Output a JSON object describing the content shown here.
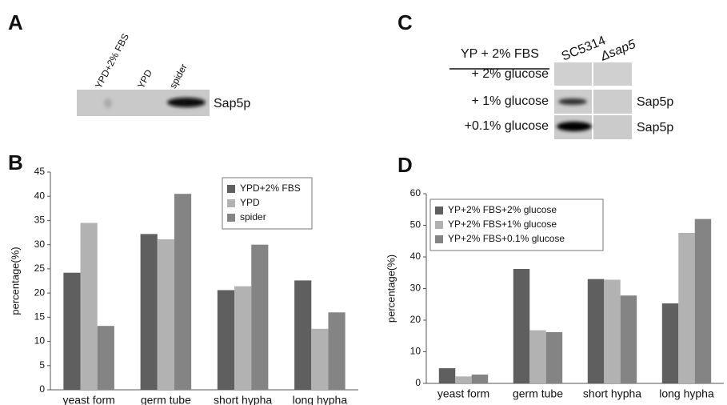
{
  "panels": {
    "A": {
      "letter": "A",
      "lanes": [
        "YPD+2% FBS",
        "YPD",
        "spider"
      ],
      "band_label": "Sap5p"
    },
    "C": {
      "letter": "C",
      "header": "YP + 2% FBS",
      "columns": [
        "SC5314",
        "Δsap5"
      ],
      "rows": [
        "+ 2% glucose",
        "+ 1% glucose",
        "+0.1% glucose"
      ],
      "band_labels": [
        "Sap5p",
        "Sap5p"
      ]
    }
  },
  "chart_data": [
    {
      "type": "bar",
      "letter": "B",
      "ylabel": "percentage(%)",
      "categories": [
        "yeast form",
        "germ tube",
        "short hypha",
        "long hypha"
      ],
      "series": [
        {
          "name": "YPD+2% FBS",
          "color": "#5f5f5f",
          "values": [
            24.2,
            32.2,
            20.6,
            22.6
          ]
        },
        {
          "name": "YPD",
          "color": "#b2b2b2",
          "values": [
            34.5,
            31.1,
            21.4,
            12.6
          ]
        },
        {
          "name": "spider",
          "color": "#848484",
          "values": [
            13.2,
            40.5,
            30,
            16
          ]
        }
      ],
      "ylim": [
        0,
        45
      ],
      "yticks": [
        0,
        5,
        10,
        15,
        20,
        25,
        30,
        35,
        40,
        45
      ],
      "legend": "upper right"
    },
    {
      "type": "bar",
      "letter": "D",
      "ylabel": "percentage(%)",
      "categories": [
        "yeast form",
        "germ tube",
        "short hypha",
        "long hypha"
      ],
      "series": [
        {
          "name": "YP+2% FBS+2% glucose",
          "color": "#5f5f5f",
          "values": [
            4.8,
            36.2,
            33,
            25.3
          ]
        },
        {
          "name": "YP+2% FBS+1% glucose",
          "color": "#b2b2b2",
          "values": [
            2.2,
            16.8,
            32.8,
            47.6
          ]
        },
        {
          "name": "YP+2% FBS+0.1% glucose",
          "color": "#848484",
          "values": [
            2.8,
            16.2,
            27.8,
            52
          ]
        }
      ],
      "ylim": [
        0,
        60
      ],
      "yticks": [
        0,
        10,
        20,
        30,
        40,
        50,
        60
      ],
      "legend": "upper left"
    }
  ]
}
